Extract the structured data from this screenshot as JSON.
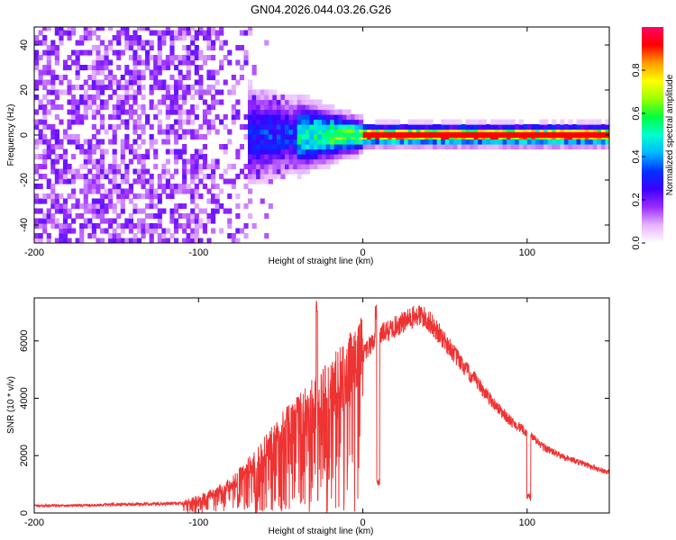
{
  "title": "GN04.2026.044.03.26.G26",
  "chart_data": [
    {
      "type": "heatmap",
      "title": "GN04.2026.044.03.26.G26",
      "xlabel": "Height of straight line (km)",
      "ylabel": "Frequency (Hz)",
      "xlim": [
        -200,
        150
      ],
      "ylim": [
        -48,
        48
      ],
      "x_ticks": [
        -200,
        -100,
        0,
        100
      ],
      "x_tick_labels": [
        "-200",
        "-100",
        "0",
        "100"
      ],
      "y_ticks": [
        -40,
        -20,
        0,
        20,
        40
      ],
      "y_tick_labels": [
        "-40",
        "-20",
        "0",
        "20",
        "40"
      ],
      "colorbar": {
        "label": "Normalized spectral amplitude",
        "range": [
          0,
          1
        ],
        "ticks": [
          0.0,
          0.2,
          0.4,
          0.6,
          0.8
        ],
        "tick_labels": [
          "0.0",
          "0.2",
          "0.4",
          "0.6",
          "0.8"
        ],
        "colors": [
          "#ffffff",
          "#e6b3ff",
          "#9a2bff",
          "#3c00ff",
          "#0033ff",
          "#00b7ff",
          "#00ffd0",
          "#00ff40",
          "#9aff00",
          "#ffff00",
          "#ff9c00",
          "#ff0000",
          "#ff0066"
        ]
      },
      "features": {
        "noise_region_km": [
          -200,
          -70
        ],
        "signal_onset_km": -90,
        "carrier_frequency_hz": 0,
        "strong_signal_from_km": 0
      }
    },
    {
      "type": "line",
      "xlabel": "Height of straight line (km)",
      "ylabel": "SNR (10 * v/v)",
      "xlim": [
        -200,
        150
      ],
      "ylim": [
        0,
        7500
      ],
      "x_ticks": [
        -200,
        -100,
        0,
        100
      ],
      "x_tick_labels": [
        "-200",
        "-100",
        "0",
        "100"
      ],
      "y_ticks": [
        0,
        2000,
        4000,
        6000
      ],
      "y_tick_labels": [
        "0",
        "2000",
        "4000",
        "6000"
      ],
      "series": [
        {
          "name": "SNR",
          "color": "#ee3333",
          "x": [
            -200,
            -180,
            -160,
            -140,
            -120,
            -110,
            -100,
            -90,
            -80,
            -70,
            -60,
            -50,
            -40,
            -30,
            -20,
            -10,
            0,
            5,
            10,
            20,
            30,
            35,
            40,
            50,
            60,
            70,
            80,
            90,
            100,
            110,
            120,
            130,
            140,
            150
          ],
          "y": [
            250,
            260,
            280,
            300,
            320,
            350,
            500,
            700,
            1000,
            1500,
            2100,
            2700,
            3300,
            3800,
            4300,
            4800,
            5500,
            5900,
            6200,
            6500,
            6800,
            6900,
            6700,
            6000,
            5200,
            4500,
            3800,
            3200,
            2800,
            2300,
            2000,
            1800,
            1600,
            1400
          ]
        }
      ],
      "annotations": {
        "dips_km": [
          9,
          101
        ],
        "spike_km": [
          8,
          -28
        ]
      }
    }
  ]
}
